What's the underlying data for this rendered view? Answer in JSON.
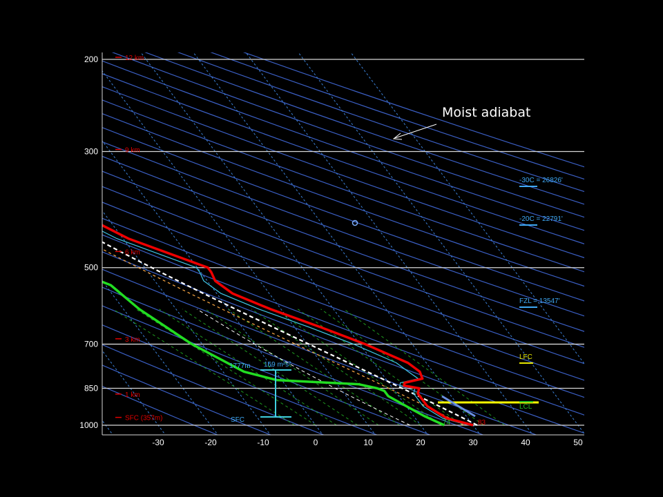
{
  "callout": {
    "text": "Moist adiabat"
  },
  "chart_data": {
    "type": "line",
    "title": "",
    "xlabel": "",
    "ylabel": "",
    "x_axis": {
      "ticks": [
        "-30",
        "-20",
        "-10",
        "0",
        "10",
        "20",
        "30",
        "40",
        "50"
      ],
      "values": [
        -30,
        -20,
        -10,
        0,
        10,
        20,
        30,
        40,
        50
      ],
      "xlim": [
        -40,
        50
      ]
    },
    "y_axis": {
      "scale": "log",
      "ticks": [
        "200",
        "300",
        "500",
        "700",
        "850",
        "1000"
      ],
      "values": [
        200,
        300,
        500,
        700,
        850,
        1000
      ],
      "ylim": [
        1000,
        200
      ]
    },
    "height_labels": [
      {
        "pressure": 200,
        "text": "12 km"
      },
      {
        "pressure": 300,
        "text": "9 km"
      },
      {
        "pressure": 470,
        "text": "6 km"
      },
      {
        "pressure": 690,
        "text": "3 km"
      },
      {
        "pressure": 880,
        "text": "1 km"
      },
      {
        "pressure": 975,
        "text": "SFC (357m)"
      }
    ],
    "annotations": {
      "minus30": "-30C = 26826'",
      "minus20": "-20C = 22791'",
      "fzl": "FZL = 13547'",
      "lfc": "LFC",
      "lcl": "LCL",
      "helicity_height": "1777m",
      "helicity_value": "169 m²s²",
      "sfc": "SFC",
      "sfc_temp": "83",
      "sfc_dewpoint": "74"
    },
    "colors": {
      "temperature": "#ee0000",
      "dewpoint": "#22dd22",
      "virtual_temp": "#40c8e8",
      "parcel_moist": "#ffffff",
      "parcel_orange": "#f0a040",
      "isobar": "#d8d8d8",
      "isotherm": "#3b82d9",
      "mixing_ratio": "#1f9a1f",
      "lcl_bar": "#ffff00",
      "hodo_bar": "#40d0e0",
      "lfc_mark": "#e6e600",
      "cyan_label": "#3fa9f5"
    },
    "series": [
      {
        "name": "",
        "values": [
          {
            "p": 1000,
            "t": 30
          },
          {
            "p": 970,
            "t": 26
          },
          {
            "p": 920,
            "t": 24
          },
          {
            "p": 870,
            "t": 24
          },
          {
            "p": 850,
            "t": 25
          },
          {
            "p": 840,
            "t": 22.5
          },
          {
            "p": 830,
            "t": 23
          },
          {
            "p": 815,
            "t": 27
          },
          {
            "p": 790,
            "t": 27.5
          },
          {
            "p": 760,
            "t": 26.5
          },
          {
            "p": 700,
            "t": 21
          },
          {
            "p": 650,
            "t": 15
          },
          {
            "p": 600,
            "t": 8
          },
          {
            "p": 560,
            "t": 3
          },
          {
            "p": 530,
            "t": 1.5
          },
          {
            "p": 510,
            "t": 2
          },
          {
            "p": 500,
            "t": 2
          },
          {
            "p": 440,
            "t": -9
          },
          {
            "p": 400,
            "t": -14
          },
          {
            "p": 350,
            "t": -21
          },
          {
            "p": 310,
            "t": -29
          },
          {
            "p": 280,
            "t": -36
          },
          {
            "p": 245,
            "t": -45
          },
          {
            "p": 220,
            "t": -51
          },
          {
            "p": 200,
            "t": -53
          },
          {
            "p": 195,
            "t": -54
          }
        ]
      },
      {
        "name": "",
        "values": [
          {
            "p": 1000,
            "t": 24.5
          },
          {
            "p": 960,
            "t": 22
          },
          {
            "p": 920,
            "t": 20
          },
          {
            "p": 880,
            "t": 18
          },
          {
            "p": 860,
            "t": 18
          },
          {
            "p": 850,
            "t": 17
          },
          {
            "p": 835,
            "t": 14
          },
          {
            "p": 820,
            "t": -1
          },
          {
            "p": 790,
            "t": -6
          },
          {
            "p": 700,
            "t": -12
          },
          {
            "p": 600,
            "t": -17
          },
          {
            "p": 540,
            "t": -19
          },
          {
            "p": 520,
            "t": -22
          },
          {
            "p": 500,
            "t": -29
          },
          {
            "p": 440,
            "t": -40
          },
          {
            "p": 400,
            "t": -47
          },
          {
            "p": 330,
            "t": -57
          },
          {
            "p": 280,
            "t": -67
          },
          {
            "p": 245,
            "t": -78
          },
          {
            "p": 230,
            "t": -79
          },
          {
            "p": 210,
            "t": -81
          },
          {
            "p": 200,
            "t": -83
          },
          {
            "p": 195,
            "t": -84
          }
        ]
      }
    ]
  }
}
